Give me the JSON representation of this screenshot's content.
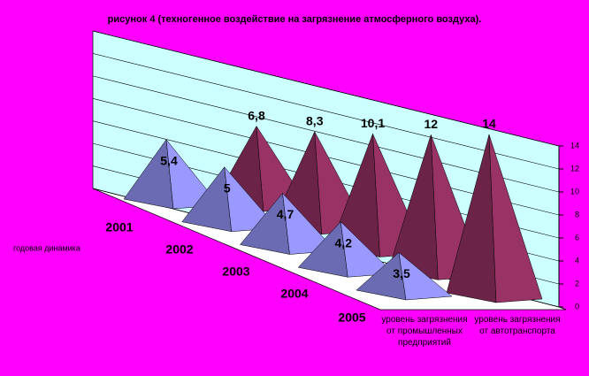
{
  "chart_data": {
    "type": "pyramid3d",
    "title": "рисунок 4 (техногенное воздействие на загрязнение атмосферного воздуха).",
    "x_label": "годовая динамика",
    "categories": [
      "2001",
      "2002",
      "2003",
      "2004",
      "2005"
    ],
    "series": [
      {
        "name": "уровень загрязнения от промышленных предприятий",
        "color": "#9999ff",
        "values": [
          5.4,
          5,
          4.7,
          4.2,
          3.5
        ],
        "value_labels": [
          "5,4",
          "5",
          "4,7",
          "4,2",
          "3,5"
        ]
      },
      {
        "name": "уровень загрязнения от автотранспорта",
        "color": "#993366",
        "values": [
          6.8,
          8.3,
          10.1,
          12,
          14
        ],
        "value_labels": [
          "6,8",
          "8,3",
          "10,1",
          "12",
          "14"
        ]
      }
    ],
    "ylim": [
      0,
      14
    ],
    "yticks": [
      0,
      2,
      4,
      6,
      8,
      10,
      12,
      14
    ],
    "grid": true
  }
}
